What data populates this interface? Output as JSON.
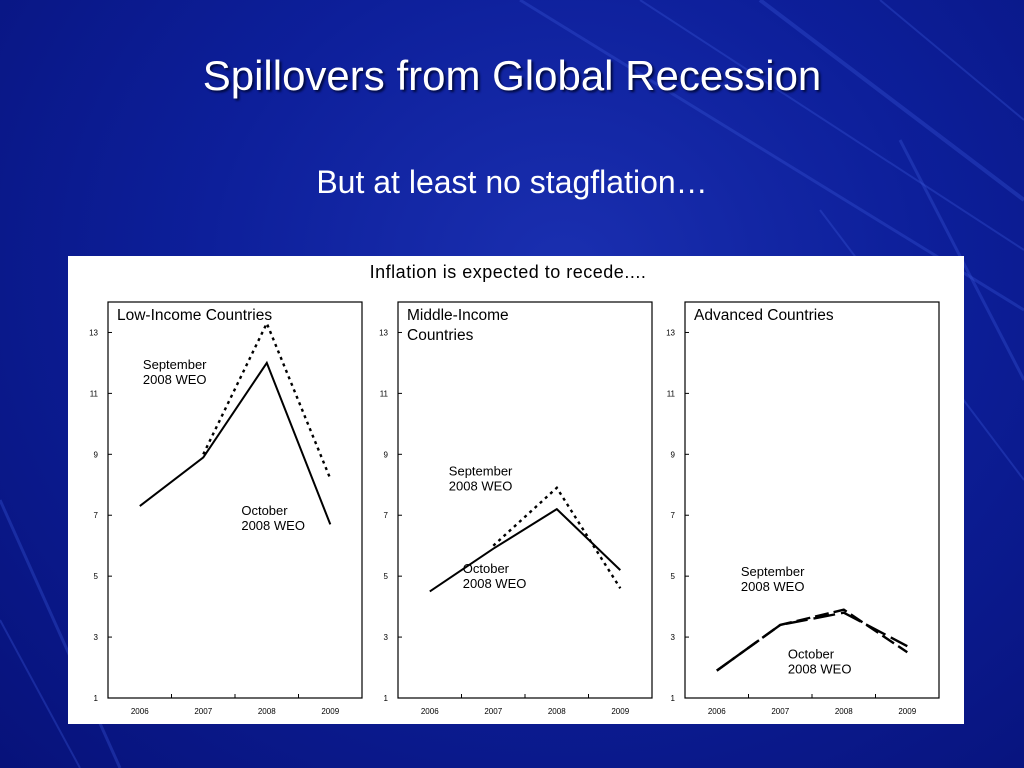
{
  "slide": {
    "title": "Spillovers from Global Recession",
    "subtitle": "But at least no stagflation…"
  },
  "chart_data": {
    "type": "line",
    "title": "Inflation is expected to recede....",
    "x": [
      "2006",
      "2007",
      "2008",
      "2009"
    ],
    "y_ticks": [
      "1",
      "3",
      "5",
      "7",
      "9",
      "11",
      "13"
    ],
    "ylim": [
      1,
      14
    ],
    "panels": [
      {
        "title": [
          "Low-Income Countries"
        ],
        "series": [
          {
            "name": "September 2008 WEO",
            "style": "dotted",
            "values": [
              null,
              9.0,
              13.3,
              8.2
            ],
            "label": [
              "September",
              "2008 WEO"
            ],
            "label_at": [
              2006.05,
              11.8
            ]
          },
          {
            "name": "October 2008 WEO",
            "style": "solid",
            "values": [
              7.3,
              8.9,
              12.0,
              6.7
            ],
            "label": [
              "October",
              "2008 WEO"
            ],
            "label_at": [
              2007.6,
              7.0
            ]
          }
        ]
      },
      {
        "title": [
          "Middle-Income",
          "Countries"
        ],
        "series": [
          {
            "name": "September 2008 WEO",
            "style": "dotted",
            "values": [
              null,
              6.0,
              7.9,
              4.6
            ],
            "label": [
              "September",
              "2008 WEO"
            ],
            "label_at": [
              2006.3,
              8.3
            ]
          },
          {
            "name": "October 2008 WEO",
            "style": "solid",
            "values": [
              4.5,
              5.9,
              7.2,
              5.2
            ],
            "label": [
              "October",
              "2008 WEO"
            ],
            "label_at": [
              2006.52,
              5.1
            ]
          }
        ]
      },
      {
        "title": [
          "Advanced Countries"
        ],
        "series": [
          {
            "name": "September 2008 WEO",
            "style": "dashed",
            "values": [
              1.9,
              3.4,
              3.9,
              2.5
            ],
            "label": [
              "September",
              "2008 WEO"
            ],
            "label_at": [
              2006.38,
              5.0
            ]
          },
          {
            "name": "October 2008 WEO",
            "style": "longdash",
            "values": [
              1.9,
              3.4,
              3.8,
              2.7
            ],
            "label": [
              "October",
              "2008 WEO"
            ],
            "label_at": [
              2007.12,
              2.3
            ]
          }
        ]
      }
    ],
    "colors": {
      "line": "#000000",
      "background": "#ffffff"
    }
  }
}
